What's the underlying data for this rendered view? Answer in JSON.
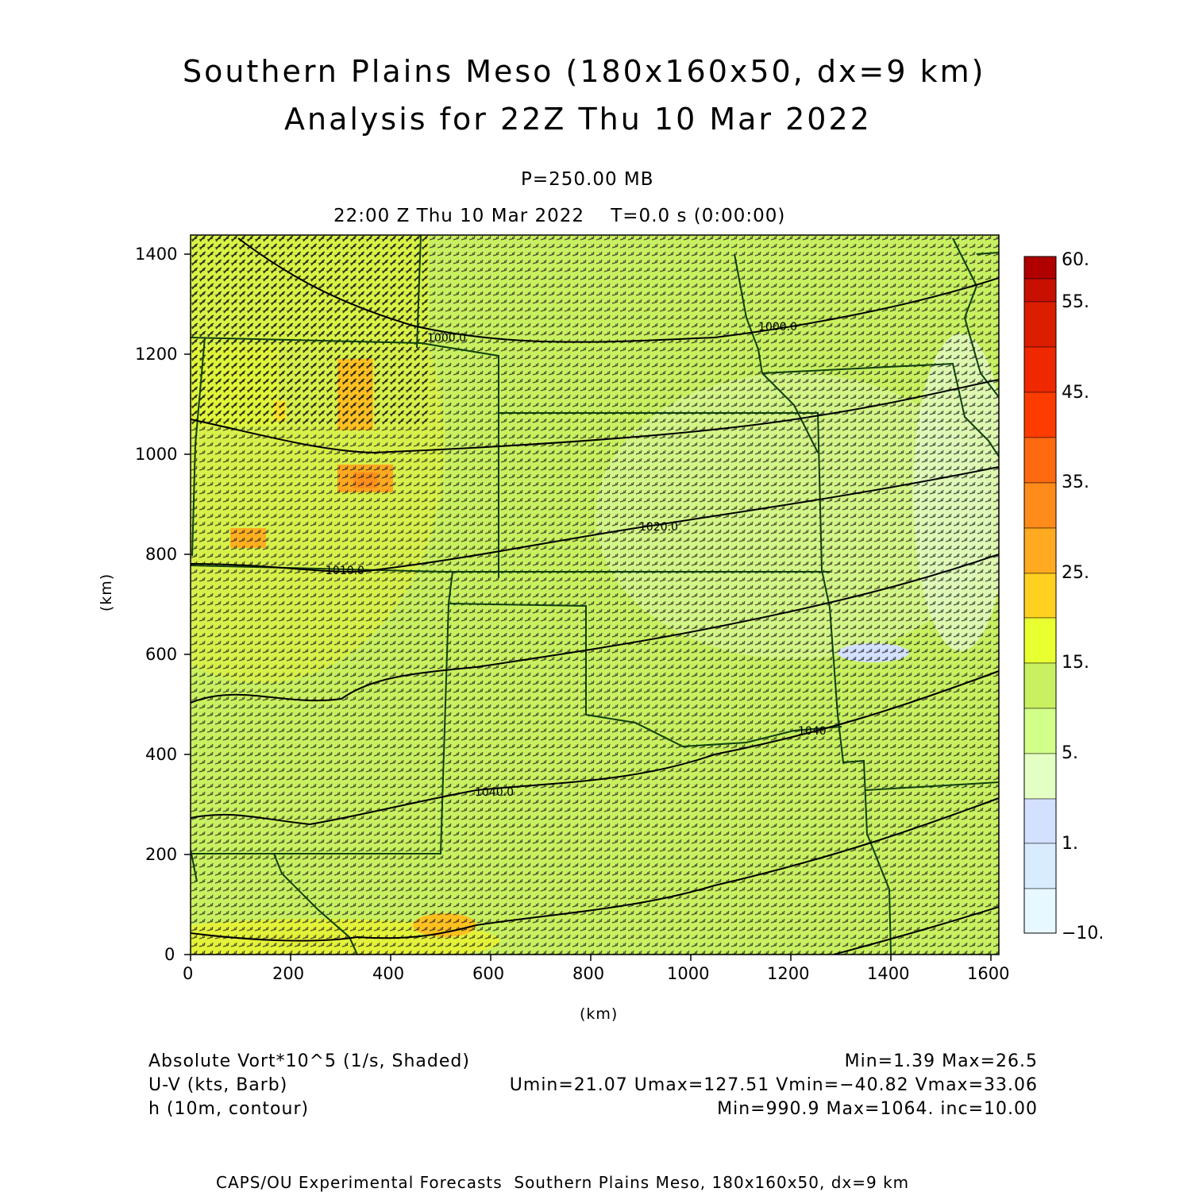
{
  "title": {
    "line1": "Southern Plains Meso (180x160x50, dx=9 km)",
    "line2": "Analysis for 22Z Thu 10 Mar 2022"
  },
  "subtitle": {
    "level": "P=250.00 MB",
    "time": "22:00 Z Thu 10 Mar 2022    T=0.0 s (0:00:00)"
  },
  "axes": {
    "xlabel": "(km)",
    "ylabel": "(km)",
    "xticks": [
      "0",
      "200",
      "400",
      "600",
      "800",
      "1000",
      "1200",
      "1400",
      "1600"
    ],
    "yticks": [
      "0",
      "200",
      "400",
      "600",
      "800",
      "1000",
      "1200",
      "1400"
    ]
  },
  "colorbar": {
    "labels": [
      "60.",
      "55.",
      "45.",
      "35.",
      "25.",
      "15.",
      "5.",
      "1.",
      "−10."
    ],
    "colors": [
      "#b00000",
      "#cc1500",
      "#e82400",
      "#ff3c00",
      "#ff6e10",
      "#ff9a1e",
      "#ffc020",
      "#ffe028",
      "#e8ff30",
      "#c8f060",
      "#d8ff90",
      "#e8ffc0",
      "#d4e0ff",
      "#d8ecff",
      "#e8f8ff"
    ]
  },
  "contour_labels": [
    "1000.0",
    "1000.0",
    "1020.0",
    "1010.0",
    "1040",
    "1040.0"
  ],
  "footer": {
    "left1": "Absolute Vort*10^5 (1/s, Shaded)",
    "left2": "U-V (kts, Barb)",
    "left3": "h (10m, contour)",
    "right1": "Min=1.39 Max=26.5",
    "right2": "Umin=21.07 Umax=127.51 Vmin=−40.82 Vmax=33.06",
    "right3": "Min=990.9 Max=1064. inc=10.00"
  },
  "credit": "CAPS/OU Experimental Forecasts  Southern Plains Meso, 180x160x50, dx=9 km"
}
